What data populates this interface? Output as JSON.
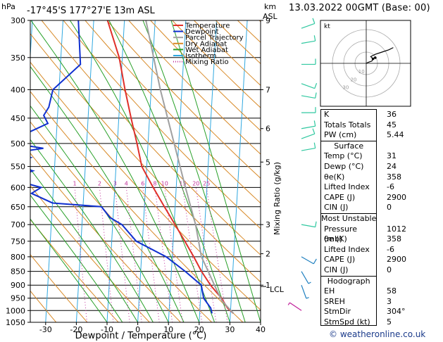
{
  "header": {
    "location": "-17°45'S  177°27'E  13m  ASL",
    "run_time": "13.03.2022  00GMT  (Base: 00)",
    "left_unit": "hPa",
    "km_label": "km",
    "asl_label": "ASL"
  },
  "colors": {
    "temperature": "#e0302a",
    "dewpoint": "#1030d0",
    "parcel": "#a0a0a0",
    "dry_adiabat": "#d88a28",
    "wet_adiabat": "#28a028",
    "isotherm": "#30a8e0",
    "mixing_ratio": "#c0309a",
    "wind_barb": "#30c8a0",
    "hodo_line": "#000000"
  },
  "legend": [
    "Temperature",
    "Dewpoint",
    "Parcel Trajectory",
    "Dry Adiabat",
    "Wet Adiabat",
    "Isotherm",
    "Mixing Ratio"
  ],
  "axes": {
    "xlabel": "Dewpoint / Temperature (°C)",
    "mixing_label": "Mixing Ratio (g/kg)",
    "x_ticks": [
      "-30",
      "-20",
      "-10",
      "0",
      "10",
      "20",
      "30",
      "40"
    ],
    "pressure_levels": [
      "300",
      "350",
      "400",
      "450",
      "500",
      "550",
      "600",
      "650",
      "700",
      "750",
      "800",
      "850",
      "900",
      "950",
      "1000",
      "1050"
    ],
    "km_ticks": [
      {
        "p": 300,
        "label": "9"
      },
      {
        "p": 400,
        "label": "7"
      },
      {
        "p": 470,
        "label": "6"
      },
      {
        "p": 540,
        "label": "5"
      },
      {
        "p": 700,
        "label": "3"
      },
      {
        "p": 790,
        "label": "2"
      },
      {
        "p": 900,
        "label": "1"
      }
    ],
    "lcl_label": "LCL",
    "lcl_p": 905,
    "mixing_values": [
      "1",
      "2",
      "3",
      "4",
      "6",
      "8",
      "10",
      "15",
      "20",
      "25"
    ]
  },
  "chart_data": {
    "type": "line",
    "xlim": [
      -35,
      40
    ],
    "ylim_hpa": [
      300,
      1050
    ],
    "skew_per_log_decade": 80,
    "series": [
      {
        "name": "Temperature",
        "points": [
          [
            -15.5,
            300
          ],
          [
            -11,
            350
          ],
          [
            -8.5,
            400
          ],
          [
            -6,
            450
          ],
          [
            -3.6,
            500
          ],
          [
            -1.6,
            550
          ],
          [
            2.5,
            600
          ],
          [
            6.5,
            650
          ],
          [
            10.3,
            700
          ],
          [
            13.8,
            750
          ],
          [
            17,
            800
          ],
          [
            19.8,
            850
          ],
          [
            23,
            900
          ],
          [
            26.8,
            950
          ],
          [
            29,
            990
          ],
          [
            31,
            1012
          ]
        ]
      },
      {
        "name": "Dewpoint",
        "points": [
          [
            -25,
            300
          ],
          [
            -23.5,
            360
          ],
          [
            -32,
            400
          ],
          [
            -33,
            430
          ],
          [
            -34.5,
            445
          ],
          [
            -33,
            460
          ],
          [
            -40,
            480
          ],
          [
            -44,
            500
          ],
          [
            -34,
            510
          ],
          [
            -44,
            520
          ],
          [
            -38,
            530
          ],
          [
            -45,
            545
          ],
          [
            -37,
            560
          ],
          [
            -44,
            580
          ],
          [
            -34,
            600
          ],
          [
            -37,
            615
          ],
          [
            -30,
            640
          ],
          [
            -14,
            650
          ],
          [
            -11,
            680
          ],
          [
            -7,
            700
          ],
          [
            -2,
            750
          ],
          [
            8,
            800
          ],
          [
            14.5,
            850
          ],
          [
            20,
            900
          ],
          [
            21,
            950
          ],
          [
            23.5,
            990
          ],
          [
            24,
            1012
          ]
        ]
      },
      {
        "name": "Parcel Trajectory",
        "points": [
          [
            31,
            1012
          ],
          [
            27,
            960
          ],
          [
            24.5,
            905
          ],
          [
            22,
            850
          ],
          [
            19.5,
            800
          ],
          [
            17,
            700
          ],
          [
            13,
            600
          ],
          [
            8.5,
            500
          ],
          [
            3,
            400
          ],
          [
            -3,
            300
          ]
        ]
      }
    ]
  },
  "winds": [
    {
      "p": 310,
      "dir": 70,
      "spd": 10
    },
    {
      "p": 330,
      "dir": 80,
      "spd": 10
    },
    {
      "p": 360,
      "dir": 90,
      "spd": 10
    },
    {
      "p": 390,
      "dir": 110,
      "spd": 10
    },
    {
      "p": 410,
      "dir": 100,
      "spd": 10
    },
    {
      "p": 440,
      "dir": 90,
      "spd": 10
    },
    {
      "p": 470,
      "dir": 80,
      "spd": 10
    },
    {
      "p": 490,
      "dir": 70,
      "spd": 10
    },
    {
      "p": 515,
      "dir": 80,
      "spd": 10
    },
    {
      "p": 700,
      "dir": 100,
      "spd": 10
    },
    {
      "p": 800,
      "dir": 120,
      "spd": 10
    },
    {
      "p": 850,
      "dir": 150,
      "spd": 5
    },
    {
      "p": 900,
      "dir": 160,
      "spd": 5
    },
    {
      "p": 1000,
      "dir": 304,
      "spd": 5
    }
  ],
  "hodograph": {
    "unit_label": "kt",
    "ring_labels": [
      "10",
      "20",
      "30"
    ],
    "trace_uv": [
      [
        0,
        0
      ],
      [
        2,
        1
      ],
      [
        5,
        2
      ],
      [
        6,
        4
      ],
      [
        4,
        6
      ],
      [
        8,
        8
      ],
      [
        14,
        10
      ],
      [
        20,
        12
      ],
      [
        24,
        14
      ]
    ],
    "storm_uv": [
      [
        6,
        4
      ],
      [
        8,
        5
      ]
    ]
  },
  "indices": {
    "K": {
      "label": "K",
      "value": "36"
    },
    "TT": {
      "label": "Totals Totals",
      "value": "45"
    },
    "PW": {
      "label": "PW (cm)",
      "value": "5.44"
    }
  },
  "surface": {
    "title": "Surface",
    "rows": [
      {
        "label": "Temp (°C)",
        "value": "31"
      },
      {
        "label": "Dewp (°C)",
        "value": "24"
      },
      {
        "label": "θe(K)",
        "value": "358"
      },
      {
        "label": "Lifted Index",
        "value": "-6"
      },
      {
        "label": "CAPE (J)",
        "value": "2900"
      },
      {
        "label": "CIN (J)",
        "value": "0"
      }
    ]
  },
  "unstable": {
    "title": "Most Unstable",
    "rows": [
      {
        "label": "Pressure (mb)",
        "value": "1012"
      },
      {
        "label": "θe (K)",
        "value": "358"
      },
      {
        "label": "Lifted Index",
        "value": "-6"
      },
      {
        "label": "CAPE (J)",
        "value": "2900"
      },
      {
        "label": "CIN (J)",
        "value": "0"
      }
    ]
  },
  "hodo_params": {
    "title": "Hodograph",
    "rows": [
      {
        "label": "EH",
        "value": "58"
      },
      {
        "label": "SREH",
        "value": "3"
      },
      {
        "label": "StmDir",
        "value": "304°"
      },
      {
        "label": "StmSpd (kt)",
        "value": "5"
      }
    ]
  },
  "copyright": "© weatheronline.co.uk"
}
